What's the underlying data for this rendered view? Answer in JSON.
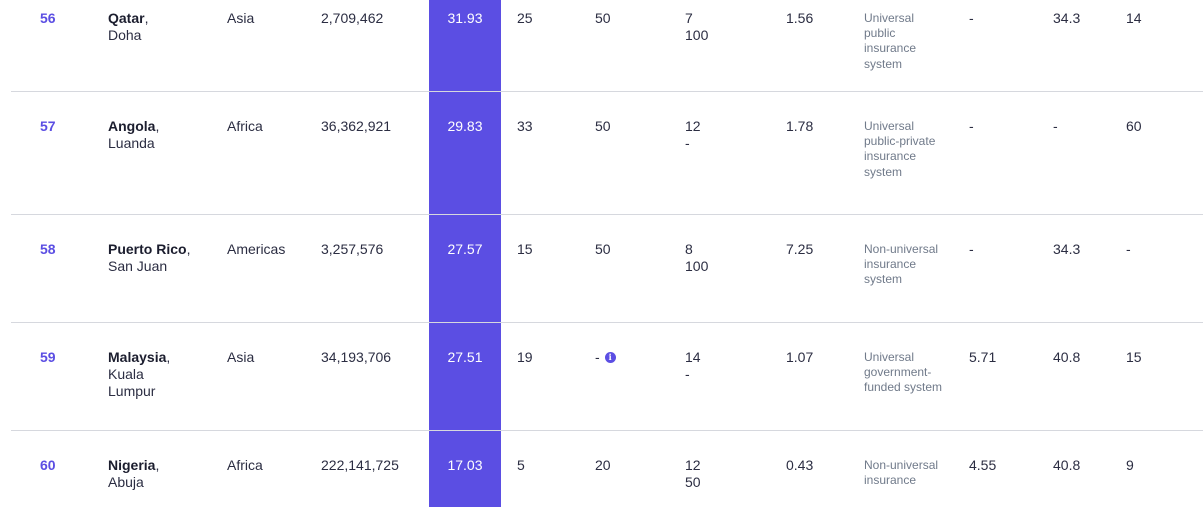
{
  "columns_unlabeled": true,
  "rows": [
    {
      "rank": "56",
      "country": "Qatar",
      "capital": "Doha",
      "region": "Asia",
      "population": "2,709,462",
      "score": "31.93",
      "c1": "25",
      "c2": "50",
      "c3a": "7",
      "c3b": "100",
      "c4": "1.56",
      "system": "Universal public insurance system",
      "c6": "-",
      "c7": "34.3",
      "c8": "14"
    },
    {
      "rank": "57",
      "country": "Angola",
      "capital": "Luanda",
      "region": "Africa",
      "population": "36,362,921",
      "score": "29.83",
      "c1": "33",
      "c2": "50",
      "c3a": "12",
      "c3b": "-",
      "c4": "1.78",
      "system": "Universal public-private insurance system",
      "c6": "-",
      "c7": "-",
      "c8": "60"
    },
    {
      "rank": "58",
      "country": "Puerto Rico",
      "capital": "San Juan",
      "region": "Americas",
      "population": "3,257,576",
      "score": "27.57",
      "c1": "15",
      "c2": "50",
      "c3a": "8",
      "c3b": "100",
      "c4": "7.25",
      "system": "Non-universal insurance system",
      "c6": "-",
      "c7": "34.3",
      "c8": "-"
    },
    {
      "rank": "59",
      "country": "Malaysia",
      "capital": "Kuala Lumpur",
      "region": "Asia",
      "population": "34,193,706",
      "score": "27.51",
      "c1": "19",
      "c2": "-",
      "c2_info_icon": "info-icon",
      "c3a": "14",
      "c3b": "-",
      "c4": "1.07",
      "system": "Universal government-funded system",
      "c6": "5.71",
      "c7": "40.8",
      "c8": "15"
    },
    {
      "rank": "60",
      "country": "Nigeria",
      "capital": "Abuja",
      "region": "Africa",
      "population": "222,141,725",
      "score": "17.03",
      "c1": "5",
      "c2": "20",
      "c3a": "12",
      "c3b": "50",
      "c4": "0.43",
      "system": "Non-universal insurance",
      "c6": "4.55",
      "c7": "40.8",
      "c8": "9"
    }
  ],
  "colors": {
    "accent": "#5b4ee3",
    "text": "#2b2d42",
    "muted": "#707a8a",
    "separator": "#d6d8de"
  }
}
